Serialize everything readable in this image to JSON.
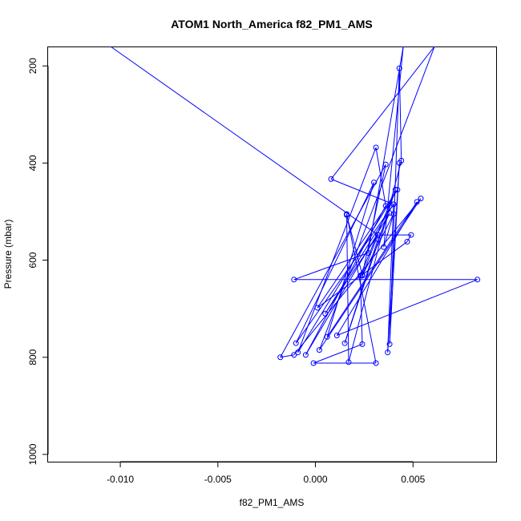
{
  "chart_data": {
    "type": "line",
    "title": "ATOM1 North_America f82_PM1_AMS",
    "xlabel": "f82_PM1_AMS",
    "ylabel": "Pressure (mbar)",
    "xlim": [
      -0.0137,
      0.0093
    ],
    "ylim": [
      1015,
      160
    ],
    "y_reversed": true,
    "grid": false,
    "x_ticks": [
      {
        "value": -0.01,
        "label": "-0.010"
      },
      {
        "value": -0.005,
        "label": "-0.005"
      },
      {
        "value": 0.0,
        "label": "0.000"
      },
      {
        "value": 0.005,
        "label": "0.005"
      }
    ],
    "y_ticks": [
      {
        "value": 200,
        "label": "200"
      },
      {
        "value": 400,
        "label": "400"
      },
      {
        "value": 600,
        "label": "600"
      },
      {
        "value": 800,
        "label": "800"
      },
      {
        "value": 1000,
        "label": "1000"
      }
    ],
    "color": "#0000ff",
    "series": [
      {
        "marker": "open-circle",
        "points": [
          {
            "x": -0.0105,
            "y": 160
          },
          {
            "x": 0.0032,
            "y": 548
          },
          {
            "x": 0.0024,
            "y": 632
          },
          {
            "x": 0.004,
            "y": 505
          },
          {
            "x": 0.0035,
            "y": 573
          },
          {
            "x": 0.0045,
            "y": 160
          },
          {
            "x": 0.0027,
            "y": 585
          },
          {
            "x": -0.0011,
            "y": 640
          },
          {
            "x": 0.0083,
            "y": 640
          },
          {
            "x": 0.0011,
            "y": 755
          },
          {
            "x": 0.0052,
            "y": 480
          },
          {
            "x": 0.0006,
            "y": 758
          },
          {
            "x": 0.003,
            "y": 440
          },
          {
            "x": -0.001,
            "y": 771
          },
          {
            "x": 0.004,
            "y": 485
          },
          {
            "x": 0.0037,
            "y": 790
          },
          {
            "x": 0.0043,
            "y": 400
          },
          {
            "x": 0.0038,
            "y": 773
          },
          {
            "x": 0.0043,
            "y": 205
          },
          {
            "x": 0.0044,
            "y": 395
          },
          {
            "x": 0.0017,
            "y": 810
          },
          {
            "x": 0.0016,
            "y": 505
          },
          {
            "x": 0.0031,
            "y": 812
          },
          {
            "x": -0.0001,
            "y": 812
          },
          {
            "x": 0.0024,
            "y": 773
          },
          {
            "x": 0.0023,
            "y": 632
          },
          {
            "x": 0.0041,
            "y": 455
          },
          {
            "x": 0.0015,
            "y": 771
          },
          {
            "x": 0.0032,
            "y": 557
          },
          {
            "x": 0.0038,
            "y": 503
          },
          {
            "x": -0.0005,
            "y": 795
          },
          {
            "x": 0.0036,
            "y": 488
          },
          {
            "x": 0.0031,
            "y": 368
          },
          {
            "x": -0.0009,
            "y": 790
          },
          {
            "x": 0.0042,
            "y": 455
          },
          {
            "x": 0.0001,
            "y": 698
          },
          {
            "x": 0.0047,
            "y": 562
          },
          {
            "x": 0.0049,
            "y": 548
          },
          {
            "x": 0.0032,
            "y": 548
          },
          {
            "x": 0.0005,
            "y": 710
          },
          {
            "x": 0.004,
            "y": 485
          },
          {
            "x": 0.0008,
            "y": 433
          },
          {
            "x": 0.0061,
            "y": 160
          },
          {
            "x": 0.0002,
            "y": 785
          },
          {
            "x": 0.0054,
            "y": 473
          },
          {
            "x": -0.0011,
            "y": 795
          },
          {
            "x": -0.0018,
            "y": 800
          },
          {
            "x": 0.0036,
            "y": 403
          },
          {
            "x": 0.0024,
            "y": 630
          },
          {
            "x": 0.0016,
            "y": 507
          }
        ]
      }
    ]
  }
}
